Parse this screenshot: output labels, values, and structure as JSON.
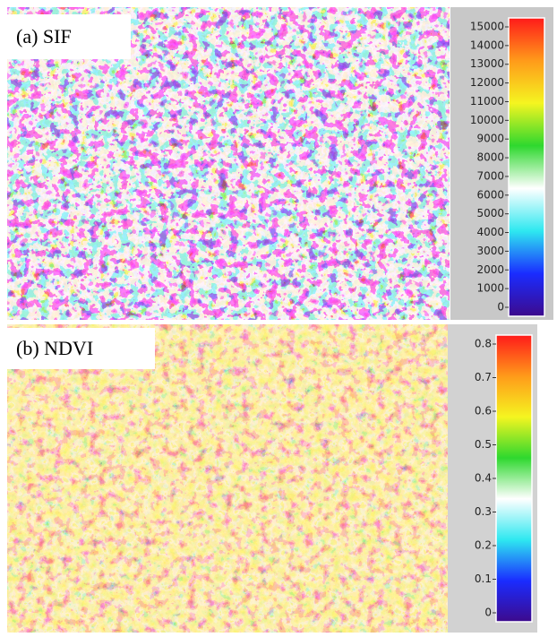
{
  "chart_data": [
    {
      "type": "image-colorbar",
      "title": "(a)  SIF",
      "colormap": [
        "#3d0a8c",
        "#1a2cff",
        "#2ee8f0",
        "#ffffff",
        "#2ed82e",
        "#f5f520",
        "#ff9a1a",
        "#ff1a1a"
      ],
      "ylim": [
        0,
        15000
      ],
      "yticks": [
        0,
        1000,
        2000,
        3000,
        4000,
        5000,
        6000,
        7000,
        8000,
        9000,
        10000,
        11000,
        12000,
        13000,
        14000,
        15000
      ]
    },
    {
      "type": "image-colorbar",
      "title": "(b)  NDVI",
      "colormap": [
        "#3d0a8c",
        "#1a2cff",
        "#2ee8f0",
        "#ffffff",
        "#2ed82e",
        "#f5f520",
        "#ff9a1a",
        "#ff1a1a"
      ],
      "ylim": [
        0,
        0.8
      ],
      "yticks": [
        0,
        0.1,
        0.2,
        0.3,
        0.4,
        0.5,
        0.6,
        0.7,
        0.8
      ]
    }
  ]
}
